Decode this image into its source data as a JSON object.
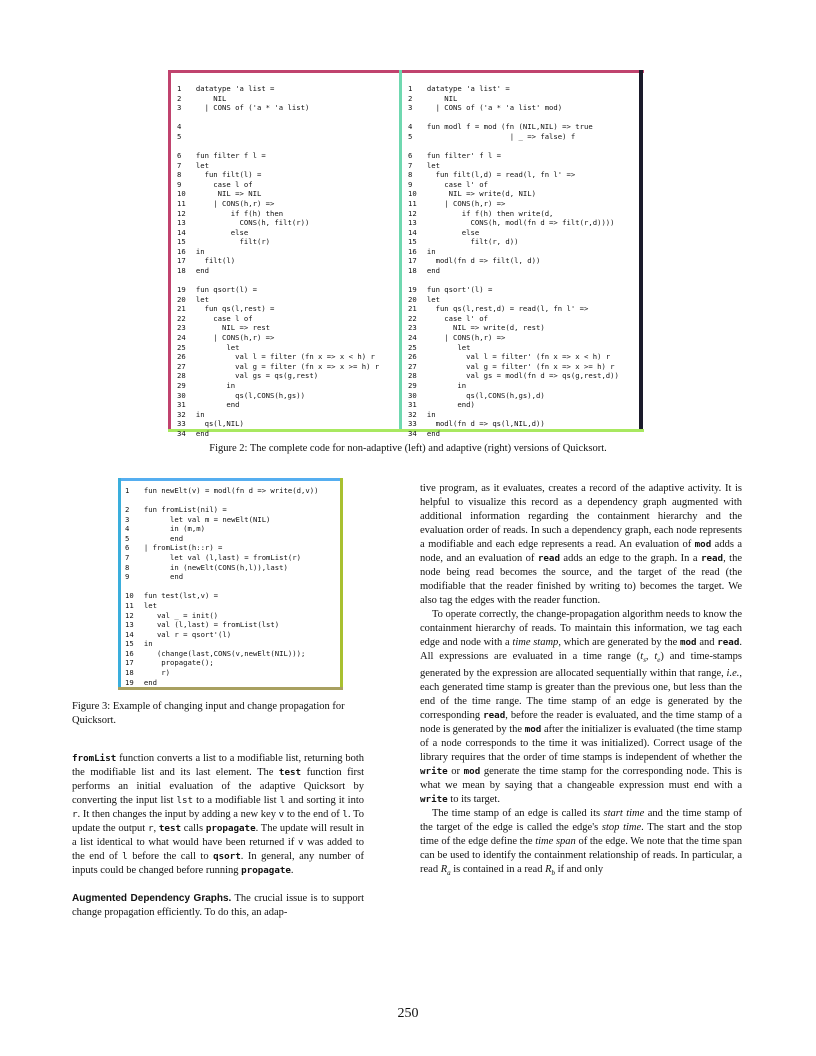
{
  "colors": {
    "fig2_top": "#c0436e",
    "fig2_left_side": "#c0436e",
    "fig2_divider": "#6fd8b0",
    "fig2_right_side": "#1a1a2a",
    "fig2_bottom": "#a8e860",
    "fig3_top": "#55aef0",
    "fig3_left_side": "#3aaedc",
    "fig3_right_side": "#a8c030",
    "fig3_bottom": "#a8a060"
  },
  "figure2": {
    "left_code": [
      [
        "1",
        "datatype 'a list ="
      ],
      [
        "2",
        "    NIL"
      ],
      [
        "3",
        "  | CONS of ('a * 'a list)"
      ],
      [],
      [
        "4",
        ""
      ],
      [
        "5",
        ""
      ],
      [],
      [
        "6",
        "fun filter f l ="
      ],
      [
        "7",
        "let"
      ],
      [
        "8",
        "  fun filt(l) ="
      ],
      [
        "9",
        "    case l of"
      ],
      [
        "10",
        "     NIL => NIL"
      ],
      [
        "11",
        "    | CONS(h,r) =>"
      ],
      [
        "12",
        "        if f(h) then"
      ],
      [
        "13",
        "          CONS(h, filt(r))"
      ],
      [
        "14",
        "        else"
      ],
      [
        "15",
        "          filt(r)"
      ],
      [
        "16",
        "in"
      ],
      [
        "17",
        "  filt(l)"
      ],
      [
        "18",
        "end"
      ],
      [],
      [
        "19",
        "fun qsort(l) ="
      ],
      [
        "20",
        "let"
      ],
      [
        "21",
        "  fun qs(l,rest) ="
      ],
      [
        "22",
        "    case l of"
      ],
      [
        "23",
        "      NIL => rest"
      ],
      [
        "24",
        "    | CONS(h,r) =>"
      ],
      [
        "25",
        "       let"
      ],
      [
        "26",
        "         val l = filter (fn x => x < h) r"
      ],
      [
        "27",
        "         val g = filter (fn x => x >= h) r"
      ],
      [
        "28",
        "         val gs = qs(g,rest)"
      ],
      [
        "29",
        "       in"
      ],
      [
        "30",
        "         qs(l,CONS(h,gs))"
      ],
      [
        "31",
        "       end"
      ],
      [
        "32",
        "in"
      ],
      [
        "33",
        "  qs(l,NIL)"
      ],
      [
        "34",
        "end"
      ]
    ],
    "right_code": [
      [
        "1",
        "datatype 'a list' ="
      ],
      [
        "2",
        "    NIL"
      ],
      [
        "3",
        "  | CONS of ('a * 'a list' mod)"
      ],
      [],
      [
        "4",
        "fun modl f = mod (fn (NIL,NIL) => true"
      ],
      [
        "5",
        "                   | _ => false) f"
      ],
      [],
      [
        "6",
        "fun filter' f l ="
      ],
      [
        "7",
        "let"
      ],
      [
        "8",
        "  fun filt(l,d) = read(l, fn l' =>"
      ],
      [
        "9",
        "    case l' of"
      ],
      [
        "10",
        "     NIL => write(d, NIL)"
      ],
      [
        "11",
        "    | CONS(h,r) =>"
      ],
      [
        "12",
        "        if f(h) then write(d,"
      ],
      [
        "13",
        "          CONS(h, modl(fn d => filt(r,d))))"
      ],
      [
        "14",
        "        else"
      ],
      [
        "15",
        "          filt(r, d))"
      ],
      [
        "16",
        "in"
      ],
      [
        "17",
        "  modl(fn d => filt(l, d))"
      ],
      [
        "18",
        "end"
      ],
      [],
      [
        "19",
        "fun qsort'(l) ="
      ],
      [
        "20",
        "let"
      ],
      [
        "21",
        "  fun qs(l,rest,d) = read(l, fn l' =>"
      ],
      [
        "22",
        "    case l' of"
      ],
      [
        "23",
        "      NIL => write(d, rest)"
      ],
      [
        "24",
        "    | CONS(h,r) =>"
      ],
      [
        "25",
        "       let"
      ],
      [
        "26",
        "         val l = filter' (fn x => x < h) r"
      ],
      [
        "27",
        "         val g = filter' (fn x => x >= h) r"
      ],
      [
        "28",
        "         val gs = modl(fn d => qs(g,rest,d))"
      ],
      [
        "29",
        "       in"
      ],
      [
        "30",
        "         qs(l,CONS(h,gs),d)"
      ],
      [
        "31",
        "       end)"
      ],
      [
        "32",
        "in"
      ],
      [
        "33",
        "  modl(fn d => qs(l,NIL,d))"
      ],
      [
        "34",
        "end"
      ]
    ],
    "caption": "Figure 2:  The complete code for non-adaptive (left) and adaptive (right) versions of Quicksort."
  },
  "figure3": {
    "code": [
      [
        "1",
        "fun newElt(v) = modl(fn d => write(d,v))"
      ],
      [],
      [
        "2",
        "fun fromList(nil) ="
      ],
      [
        "3",
        "      let val m = newElt(NIL)"
      ],
      [
        "4",
        "      in (m,m)"
      ],
      [
        "5",
        "      end"
      ],
      [
        "6",
        "| fromList(h::r) ="
      ],
      [
        "7",
        "      let val (l,last) = fromList(r)"
      ],
      [
        "8",
        "      in (newElt(CONS(h,l)),last)"
      ],
      [
        "9",
        "      end"
      ],
      [],
      [
        "10",
        "fun test(lst,v) ="
      ],
      [
        "11",
        "let"
      ],
      [
        "12",
        "   val _ = init()"
      ],
      [
        "13",
        "   val (l,last) = fromList(lst)"
      ],
      [
        "14",
        "   val r = qsort'(l)"
      ],
      [
        "15",
        "in"
      ],
      [
        "16",
        "   (change(last,CONS(v,newElt(NIL)));"
      ],
      [
        "17",
        "    propagate();"
      ],
      [
        "18",
        "    r)"
      ],
      [
        "19",
        "end"
      ]
    ],
    "caption": "Figure 3: Example of changing input and change propagation for Quicksort."
  },
  "left_column": {
    "p1": [
      {
        "t": "fromList",
        "c": "kwb"
      },
      {
        "t": " function converts a list to a modifiable list, returning both the modifiable list and its last element. The "
      },
      {
        "t": "test",
        "c": "kwb"
      },
      {
        "t": " function first performs an initial evaluation of the adaptive Quicksort by converting the input list "
      },
      {
        "t": "lst",
        "c": "kw"
      },
      {
        "t": " to a modifiable list "
      },
      {
        "t": "l",
        "c": "kw"
      },
      {
        "t": " and sorting it into "
      },
      {
        "t": "r",
        "c": "kw"
      },
      {
        "t": ". It then changes the input by adding a new key "
      },
      {
        "t": "v",
        "c": "kw"
      },
      {
        "t": " to the end of "
      },
      {
        "t": "l",
        "c": "kw"
      },
      {
        "t": ". To update the output "
      },
      {
        "t": "r",
        "c": "kw"
      },
      {
        "t": ", "
      },
      {
        "t": "test",
        "c": "kwb"
      },
      {
        "t": " calls "
      },
      {
        "t": "propagate",
        "c": "kwb"
      },
      {
        "t": ". The update will result in a list identical to what would have been returned if "
      },
      {
        "t": "v",
        "c": "kw"
      },
      {
        "t": " was added to the end of "
      },
      {
        "t": "l",
        "c": "kw"
      },
      {
        "t": " before the call to "
      },
      {
        "t": "qsort",
        "c": "kwb"
      },
      {
        "t": ". In general, any number of inputs could be changed before running "
      },
      {
        "t": "propagate",
        "c": "kwb"
      },
      {
        "t": "."
      }
    ],
    "p2": [
      {
        "t": "Augmented Dependency Graphs.",
        "c": "head"
      },
      {
        "t": "  The crucial issue is to support change propagation efficiently. To do this, an adap-"
      }
    ]
  },
  "right_column": {
    "p1": [
      {
        "t": "tive program, as it evaluates, creates a record of the adaptive activity. It is helpful to visualize this record as a dependency graph augmented with additional information regarding the containment hierarchy and the evaluation order of reads. In such a dependency graph, each node represents a modifiable and each edge represents a read. An evaluation of "
      },
      {
        "t": "mod",
        "c": "kwb"
      },
      {
        "t": " adds a node, and an evaluation of "
      },
      {
        "t": "read",
        "c": "kwb"
      },
      {
        "t": " adds an edge to the graph. In a "
      },
      {
        "t": "read",
        "c": "kwb"
      },
      {
        "t": ", the node being read becomes the source, and the target of the read (the modifiable that the reader finished by writing to) becomes the target. We also tag the edges with the reader function."
      }
    ],
    "p2": [
      {
        "t": "To operate correctly, the change-propagation algorithm needs to know the containment hierarchy of reads. To maintain this information, we tag each edge and node with a "
      },
      {
        "t": "time stamp",
        "c": "em"
      },
      {
        "t": ", which are generated by the "
      },
      {
        "t": "mod",
        "c": "kwb"
      },
      {
        "t": " and "
      },
      {
        "t": "read",
        "c": "kwb"
      },
      {
        "t": ". All expressions are evaluated in a time range ("
      },
      {
        "t": "t",
        "c": "em"
      },
      {
        "t": "s",
        "c": "sub"
      },
      {
        "t": ", "
      },
      {
        "t": "t",
        "c": "em"
      },
      {
        "t": "e",
        "c": "sub"
      },
      {
        "t": ") and time-stamps generated by the expression are allocated sequentially within that range, "
      },
      {
        "t": "i.e.",
        "c": "em"
      },
      {
        "t": ", each generated time stamp is greater than the previous one, but less than the end of the time range. The time stamp of an edge is generated by the corresponding "
      },
      {
        "t": "read",
        "c": "kwb"
      },
      {
        "t": ", before the reader is evaluated, and the time stamp of a node is generated by the "
      },
      {
        "t": "mod",
        "c": "kwb"
      },
      {
        "t": " after the initializer is evaluated (the time stamp of a node corresponds to the time it was initialized). Correct usage of the library requires that the order of time stamps is independent of whether the "
      },
      {
        "t": "write",
        "c": "kwb"
      },
      {
        "t": " or "
      },
      {
        "t": "mod",
        "c": "kwb"
      },
      {
        "t": " generate the time stamp for the corresponding node. This is what we mean by saying that a changeable expression must end with a "
      },
      {
        "t": "write",
        "c": "kwb"
      },
      {
        "t": " to its target."
      }
    ],
    "p3": [
      {
        "t": "The time stamp of an edge is called its "
      },
      {
        "t": "start time",
        "c": "em"
      },
      {
        "t": " and the time stamp of the target of the edge is called the edge's "
      },
      {
        "t": "stop time",
        "c": "em"
      },
      {
        "t": ". The start and the stop time of the edge define the "
      },
      {
        "t": "time span",
        "c": "em"
      },
      {
        "t": " of the edge. We note that the time span can be used to identify the containment relationship of reads. In particular, a read "
      },
      {
        "t": "R",
        "c": "em"
      },
      {
        "t": "a",
        "c": "sub"
      },
      {
        "t": " is contained in a read "
      },
      {
        "t": "R",
        "c": "em"
      },
      {
        "t": "b",
        "c": "sub"
      },
      {
        "t": " if and only"
      }
    ]
  },
  "page_number": "250"
}
